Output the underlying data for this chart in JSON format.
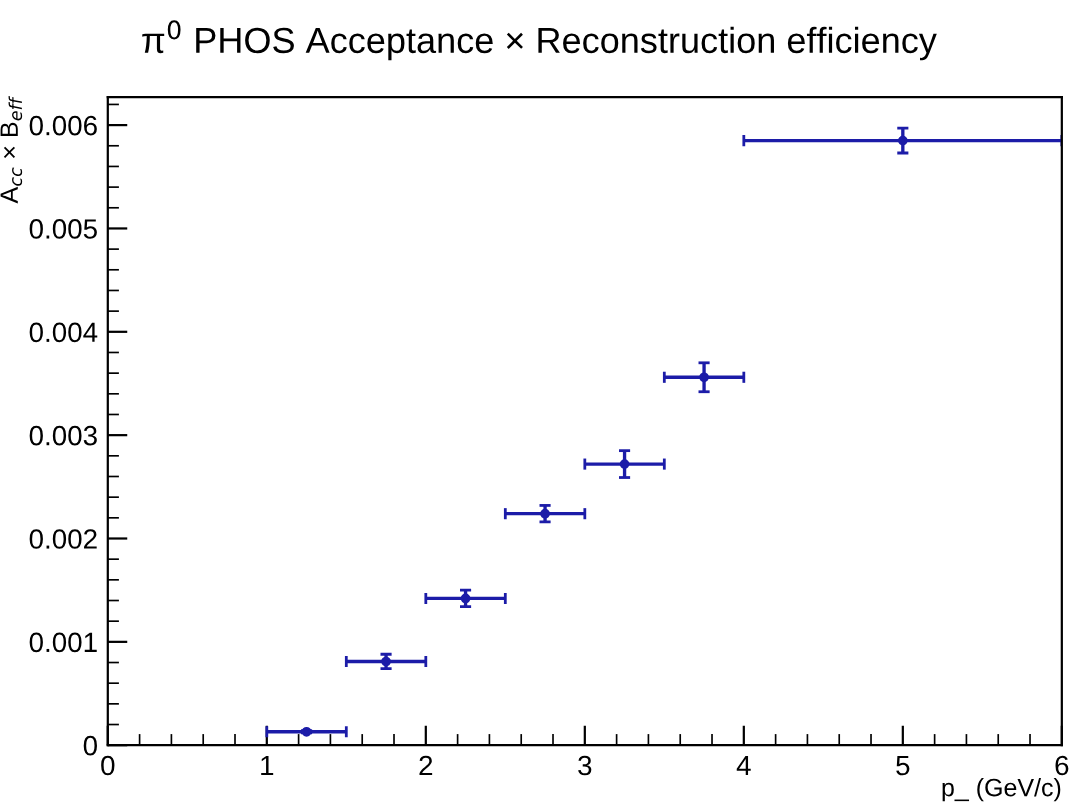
{
  "chart_data": {
    "type": "scatter",
    "title": "π$^{0}$ PHOS Acceptance × Reconstruction efficiency",
    "xlabel": "p_ (GeV/c)",
    "ylabel": "A$_{cc}$ × B$_{eff}$",
    "x": [
      1.25,
      1.75,
      2.25,
      2.75,
      3.25,
      3.75,
      5
    ],
    "series": [
      {
        "color": "#1c1ca8",
        "values": [
          0.00013,
          0.00081,
          0.00142,
          0.00224,
          0.00272,
          0.00356,
          0.00585
        ],
        "errors": [
          1e-05,
          7e-05,
          8e-05,
          8e-05,
          0.00013,
          0.00014,
          0.00012
        ],
        "xerrors": [
          0.25,
          0.25,
          0.25,
          0.25,
          0.25,
          0.25,
          1
        ]
      }
    ],
    "marker": "circle",
    "grid": false,
    "legend": false,
    "xlim": [
      0,
      6
    ],
    "xticks": [
      0,
      1,
      2,
      3,
      4,
      5,
      6
    ],
    "ylim": [
      0,
      0.00627
    ],
    "yticks": [
      {
        "value": 0,
        "label": "0"
      },
      0.001,
      0.002,
      0.003,
      0.004,
      0.005,
      0.006
    ]
  }
}
